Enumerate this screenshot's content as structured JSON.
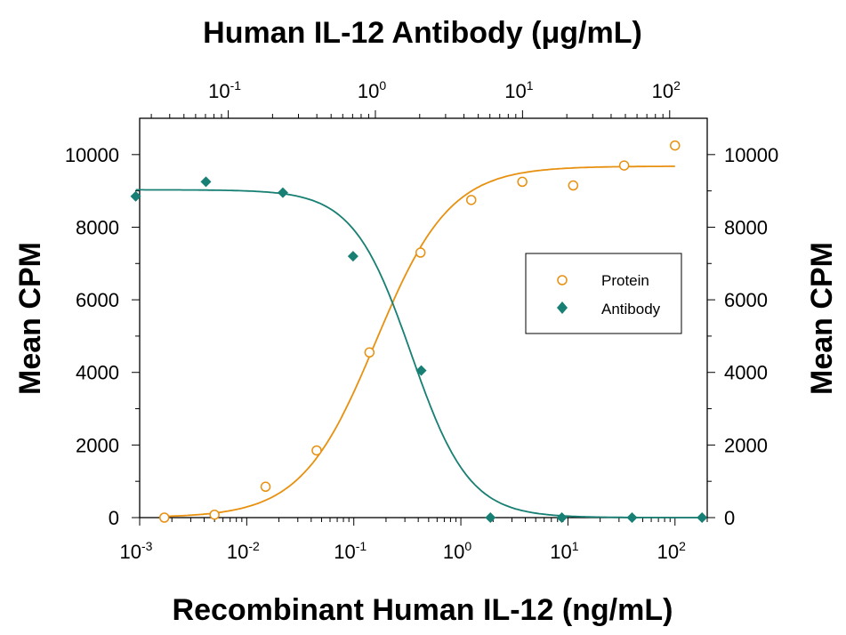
{
  "chart_data": {
    "type": "scatter",
    "title": "Human IL-12 Antibody (μg/mL)",
    "xlabel": "Recombinant Human IL-12 (ng/mL)",
    "top_xlabel": "Human IL-12 Antibody (μg/mL)",
    "ylabel": "Mean CPM",
    "ylabel_right": "Mean CPM",
    "x_scale": "log",
    "xlim": [
      0.001,
      200
    ],
    "top_xlim": [
      0.025,
      180
    ],
    "ylim": [
      0,
      11000
    ],
    "y_ticks": [
      "0",
      "2000",
      "4000",
      "6000",
      "8000",
      "10000"
    ],
    "x_ticks": [
      {
        "base": "10",
        "exp": "-3",
        "value": 0.001
      },
      {
        "base": "10",
        "exp": "-2",
        "value": 0.01
      },
      {
        "base": "10",
        "exp": "-1",
        "value": 0.1
      },
      {
        "base": "10",
        "exp": "0",
        "value": 1
      },
      {
        "base": "10",
        "exp": "1",
        "value": 10
      },
      {
        "base": "10",
        "exp": "2",
        "value": 100
      }
    ],
    "top_x_ticks": [
      {
        "base": "10",
        "exp": "-1",
        "value": 0.1
      },
      {
        "base": "10",
        "exp": "0",
        "value": 1
      },
      {
        "base": "10",
        "exp": "1",
        "value": 10
      },
      {
        "base": "10",
        "exp": "2",
        "value": 100
      }
    ],
    "legend_position": "right",
    "grid": false,
    "series": [
      {
        "name": "Protein",
        "axis": "bottom",
        "marker": "open-circle",
        "color": "#E8900F",
        "x": [
          0.0017,
          0.005,
          0.015,
          0.045,
          0.14,
          0.42,
          1.25,
          3.75,
          11.2,
          33.5,
          100
        ],
        "y": [
          0,
          80,
          850,
          1850,
          4550,
          7300,
          8750,
          9250,
          9150,
          9700,
          10250
        ],
        "fit": {
          "bottom": 0,
          "top": 9680,
          "ec50": 0.16,
          "hill": 1.25
        }
      },
      {
        "name": "Antibody",
        "axis": "top",
        "marker": "filled-diamond",
        "color": "#177F73",
        "x": [
          0.0235,
          0.0705,
          0.235,
          0.705,
          2.05,
          6.05,
          18.5,
          55.5,
          166
        ],
        "y": [
          8850,
          9250,
          8950,
          7200,
          4050,
          0,
          0,
          0,
          0
        ],
        "fit": {
          "bottom": 0,
          "top": 9030,
          "ec50": 1.75,
          "hill": 2.2
        }
      }
    ]
  }
}
